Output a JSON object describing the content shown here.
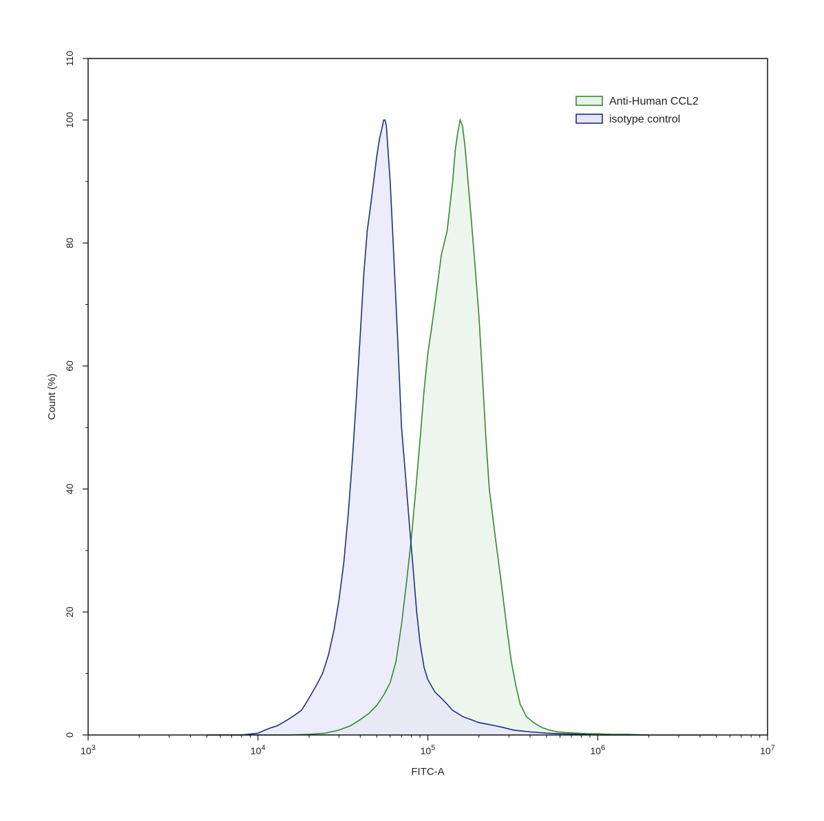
{
  "chart_data": {
    "type": "area",
    "title": "",
    "xlabel": "FITC-A",
    "ylabel": "Count  (%)",
    "x_scale": "log",
    "xlim": [
      1000,
      10000000
    ],
    "ylim": [
      0,
      110
    ],
    "x_ticks": [
      {
        "value": 1000,
        "base": "10",
        "exp": "3"
      },
      {
        "value": 10000,
        "base": "10",
        "exp": "4"
      },
      {
        "value": 100000,
        "base": "10",
        "exp": "5"
      },
      {
        "value": 1000000,
        "base": "10",
        "exp": "6"
      },
      {
        "value": 10000000,
        "base": "10",
        "exp": "7"
      }
    ],
    "y_ticks": [
      0,
      20,
      40,
      60,
      80,
      100,
      110
    ],
    "y_tick_labels": [
      "0",
      "20",
      "40",
      "60",
      "80",
      "100",
      "110"
    ],
    "grid": false,
    "legend_position": "top-right",
    "series": [
      {
        "name": "Anti-Human CCL2",
        "stroke": "#2e8b2e",
        "fill": "#e6f3e6",
        "x": [
          5000,
          15000,
          20000,
          25000,
          30000,
          35000,
          40000,
          45000,
          50000,
          55000,
          60000,
          65000,
          70000,
          75000,
          80000,
          85000,
          90000,
          95000,
          100000,
          105000,
          110000,
          115000,
          120000,
          130000,
          140000,
          145000,
          150000,
          155000,
          160000,
          165000,
          170000,
          180000,
          190000,
          200000,
          210000,
          220000,
          230000,
          250000,
          270000,
          290000,
          310000,
          330000,
          350000,
          380000,
          420000,
          470000,
          520000,
          580000,
          650000,
          750000,
          900000,
          1000000,
          1200000,
          1500000,
          2000000,
          3000000,
          5000000
        ],
        "y": [
          0,
          0,
          0.1,
          0.3,
          0.8,
          1.5,
          2.5,
          3.5,
          4.8,
          6.5,
          8.5,
          12,
          18,
          25,
          32,
          40,
          48,
          56,
          62,
          66,
          70,
          74,
          78,
          82,
          90,
          95,
          98,
          100,
          99,
          96,
          92,
          84,
          76,
          68,
          58,
          48,
          40,
          32,
          25,
          18,
          12,
          8,
          5,
          3,
          2,
          1.2,
          0.8,
          0.5,
          0.4,
          0.3,
          0.2,
          0.2,
          0.1,
          0.1,
          0,
          0,
          0
        ]
      },
      {
        "name": "isotype control",
        "stroke": "#1a2f8a",
        "fill": "#e6e6f8",
        "x": [
          5000,
          8000,
          10000,
          11000,
          12000,
          13000,
          14000,
          15000,
          16000,
          17000,
          18000,
          19000,
          20000,
          22000,
          24000,
          26000,
          28000,
          30000,
          32000,
          34000,
          36000,
          38000,
          40000,
          42000,
          44000,
          46000,
          48000,
          50000,
          52000,
          54000,
          55000,
          56000,
          57000,
          58000,
          60000,
          62000,
          64000,
          66000,
          68000,
          70000,
          74000,
          78000,
          82000,
          86000,
          90000,
          95000,
          100000,
          110000,
          120000,
          130000,
          140000,
          150000,
          160000,
          180000,
          200000,
          220000,
          250000,
          280000,
          320000,
          400000,
          500000,
          600000,
          800000,
          1000000,
          1500000,
          2000000
        ],
        "y": [
          0,
          0,
          0.3,
          0.8,
          1.2,
          1.5,
          2,
          2.5,
          3,
          3.5,
          4,
          5,
          6,
          8,
          10,
          13,
          17,
          22,
          28,
          36,
          45,
          55,
          65,
          75,
          82,
          86,
          90,
          94,
          97,
          99,
          100,
          100,
          99,
          96,
          90,
          82,
          74,
          66,
          58,
          50,
          42,
          34,
          27,
          20,
          15,
          11,
          9,
          7,
          6,
          5,
          4,
          3.5,
          3,
          2.5,
          2,
          1.8,
          1.5,
          1.2,
          0.8,
          0.5,
          0.3,
          0.2,
          0.1,
          0,
          0,
          0
        ]
      }
    ]
  }
}
